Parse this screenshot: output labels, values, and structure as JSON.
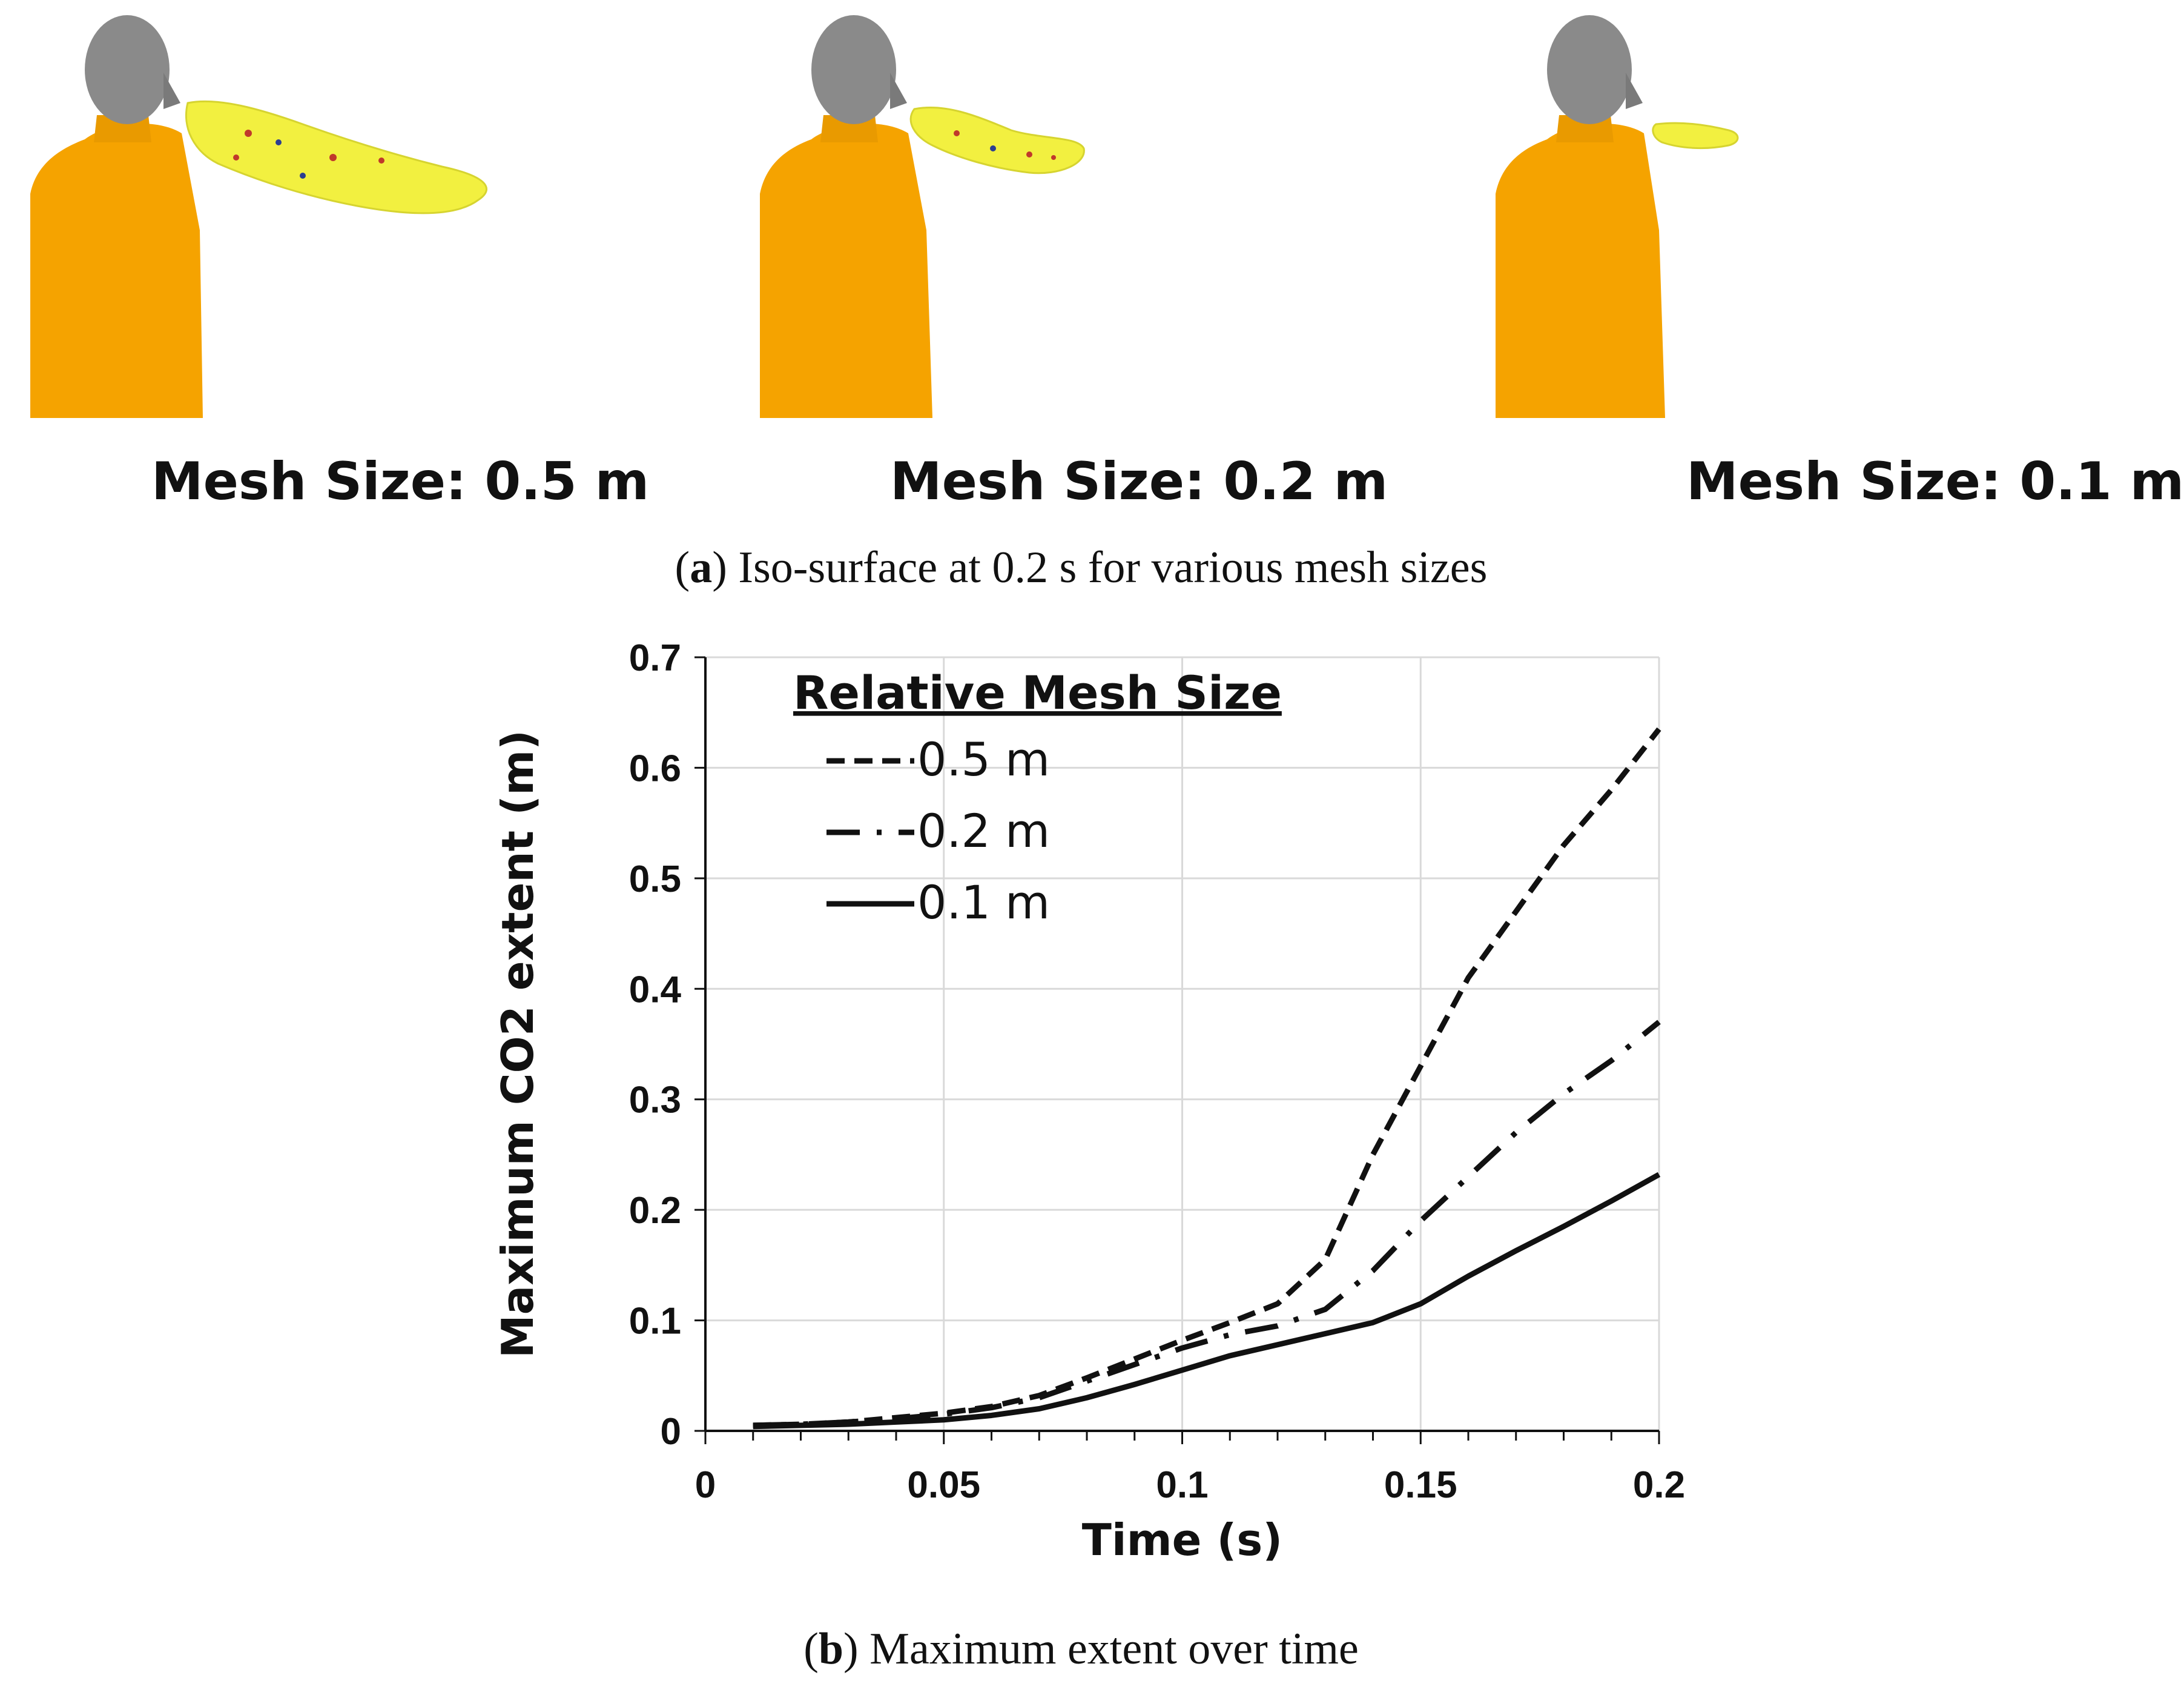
{
  "panel_a": {
    "captions": [
      "Mesh Size: 0.5 m",
      "Mesh Size: 0.2 m",
      "Mesh Size: 0.1 m"
    ],
    "sub_caption_letter": "a",
    "sub_caption_text": ") Iso-surface at 0.2 s for various mesh sizes",
    "colors": {
      "body": "#F5A300",
      "head": "#8a8a8a",
      "plume": "#F2F040"
    }
  },
  "panel_b": {
    "sub_caption_letter": "b",
    "sub_caption_text": ") Maximum extent over time"
  },
  "chart_data": {
    "type": "line",
    "xlabel": "Time (s)",
    "ylabel": "Maximum CO2 extent (m)",
    "xlim": [
      0,
      0.2
    ],
    "ylim": [
      0,
      0.7
    ],
    "x_ticks": [
      "0",
      "0.05",
      "0.1",
      "0.15",
      "0.2"
    ],
    "y_ticks": [
      "0",
      "0.1",
      "0.2",
      "0.3",
      "0.4",
      "0.5",
      "0.6",
      "0.7"
    ],
    "grid": true,
    "legend_title": "Relative Mesh Size",
    "legend_position": "top-left",
    "series": [
      {
        "name": "0.5 m",
        "style": "dashed",
        "x": [
          0.01,
          0.02,
          0.03,
          0.04,
          0.05,
          0.06,
          0.07,
          0.08,
          0.09,
          0.1,
          0.11,
          0.12,
          0.13,
          0.14,
          0.15,
          0.16,
          0.17,
          0.18,
          0.19,
          0.2
        ],
        "y": [
          0.005,
          0.006,
          0.008,
          0.012,
          0.016,
          0.022,
          0.032,
          0.048,
          0.065,
          0.082,
          0.098,
          0.115,
          0.155,
          0.25,
          0.33,
          0.41,
          0.47,
          0.53,
          0.58,
          0.635
        ]
      },
      {
        "name": "0.2 m",
        "style": "dash-dot",
        "x": [
          0.01,
          0.02,
          0.03,
          0.04,
          0.05,
          0.06,
          0.07,
          0.08,
          0.09,
          0.1,
          0.11,
          0.12,
          0.13,
          0.14,
          0.15,
          0.16,
          0.17,
          0.18,
          0.19,
          0.2
        ],
        "y": [
          0.005,
          0.006,
          0.008,
          0.011,
          0.015,
          0.021,
          0.03,
          0.045,
          0.06,
          0.075,
          0.087,
          0.095,
          0.11,
          0.145,
          0.19,
          0.23,
          0.27,
          0.305,
          0.335,
          0.37
        ]
      },
      {
        "name": "0.1 m",
        "style": "solid",
        "x": [
          0.01,
          0.02,
          0.03,
          0.04,
          0.05,
          0.06,
          0.07,
          0.08,
          0.09,
          0.1,
          0.11,
          0.12,
          0.13,
          0.14,
          0.15,
          0.16,
          0.17,
          0.18,
          0.19,
          0.2
        ],
        "y": [
          0.004,
          0.005,
          0.006,
          0.008,
          0.01,
          0.014,
          0.02,
          0.03,
          0.042,
          0.055,
          0.068,
          0.078,
          0.088,
          0.098,
          0.115,
          0.14,
          0.163,
          0.185,
          0.208,
          0.232
        ]
      }
    ]
  }
}
